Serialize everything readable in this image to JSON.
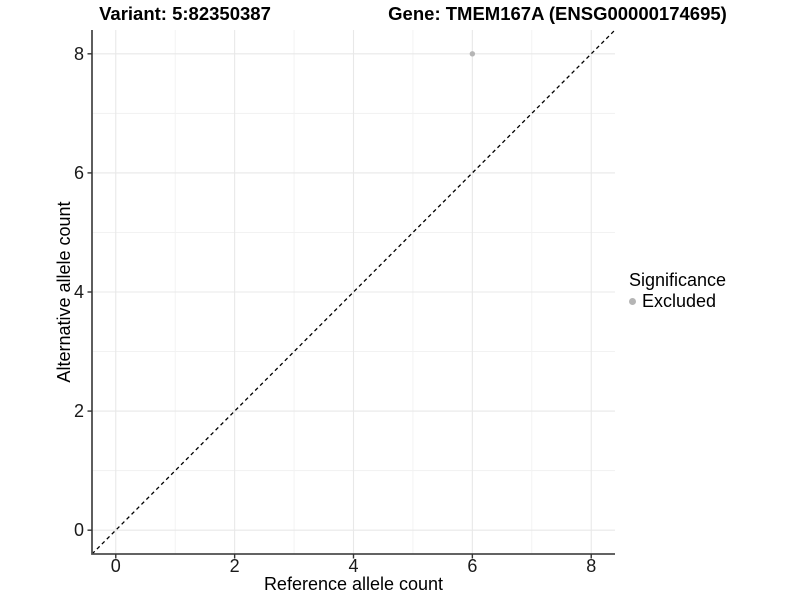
{
  "chart_data": {
    "type": "scatter",
    "titles": {
      "left": "Variant: 5:82350387",
      "right": "Gene: TMEM167A (ENSG00000174695)"
    },
    "xlabel": "Reference allele count",
    "ylabel": "Alternative allele count",
    "xlim": [
      -0.4,
      8.4
    ],
    "ylim": [
      -0.4,
      8.4
    ],
    "xticks": [
      0,
      2,
      4,
      6,
      8
    ],
    "yticks": [
      0,
      2,
      4,
      6,
      8
    ],
    "xminor": [
      1,
      3,
      5,
      7
    ],
    "yminor": [
      1,
      3,
      5,
      7
    ],
    "grid": true,
    "points": [
      {
        "x": 6,
        "y": 8,
        "series": "Excluded"
      }
    ],
    "reference_line": {
      "kind": "identity",
      "style": "dashed",
      "color": "#000000"
    },
    "legend": {
      "title": "Significance",
      "position": "right",
      "entries": [
        {
          "label": "Excluded",
          "color": "#b5b5b5",
          "marker": "circle"
        }
      ]
    },
    "colors": {
      "background": "#ffffff",
      "point": "#b5b5b5",
      "grid_major": "#e8e8e8",
      "grid_minor": "#f1f1f1",
      "axis_line": "#4d4d4d",
      "tick": "#333333",
      "tick_label": "#1a1a1a",
      "title": "#000000"
    }
  }
}
